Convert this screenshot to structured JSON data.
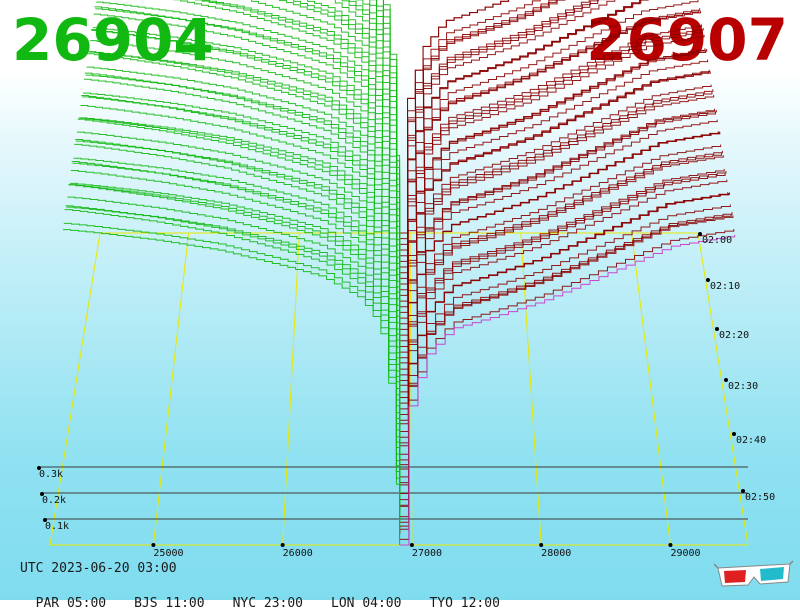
{
  "header": {
    "bid_price": "26904",
    "ask_price": "26907",
    "bid_color": "#12b812",
    "ask_color": "#b80000"
  },
  "footer": {
    "utc": "UTC 2023-06-20 03:00",
    "cities": [
      "PAR 05:00",
      "BJS 11:00",
      "NYC 23:00",
      "LON 04:00",
      "TYO 12:00"
    ]
  },
  "icons": {
    "glasses": "3d-glasses-icon"
  },
  "chart_data": {
    "type": "area",
    "x_ticks": [
      25000,
      26000,
      27000,
      28000,
      29000
    ],
    "x_tick_labels": [
      "25000",
      "26000",
      "27000",
      "28000",
      "29000"
    ],
    "xlim": [
      24200,
      29600
    ],
    "z_ticks": [
      0.1,
      0.2,
      0.3
    ],
    "z_tick_labels": [
      "0.1k",
      "0.2k",
      "0.3k"
    ],
    "zlim": [
      0,
      0.6
    ],
    "time_ticks": [
      "02:00",
      "02:10",
      "02:20",
      "02:30",
      "02:40",
      "02:50"
    ],
    "snapshot_count": 56,
    "mid_price": 26905.5,
    "bid_color": "#12b812",
    "ask_color": "#8b0000",
    "latest_ask_color": "#cc33cc",
    "grid_color": "#e8e800",
    "bid_profile": {
      "price": [
        24300,
        24500,
        25000,
        25500,
        26000,
        26300,
        26600,
        26750,
        26850,
        26904
      ],
      "cum_volume": [
        0.58,
        0.575,
        0.56,
        0.54,
        0.51,
        0.49,
        0.45,
        0.4,
        0.25,
        0.0
      ]
    },
    "ask_profile": {
      "price": [
        26907,
        26950,
        27100,
        27300,
        27600,
        28000,
        28500,
        29000,
        29500
      ],
      "cum_volume": [
        0.0,
        0.24,
        0.35,
        0.4,
        0.42,
        0.45,
        0.5,
        0.55,
        0.57
      ]
    }
  }
}
